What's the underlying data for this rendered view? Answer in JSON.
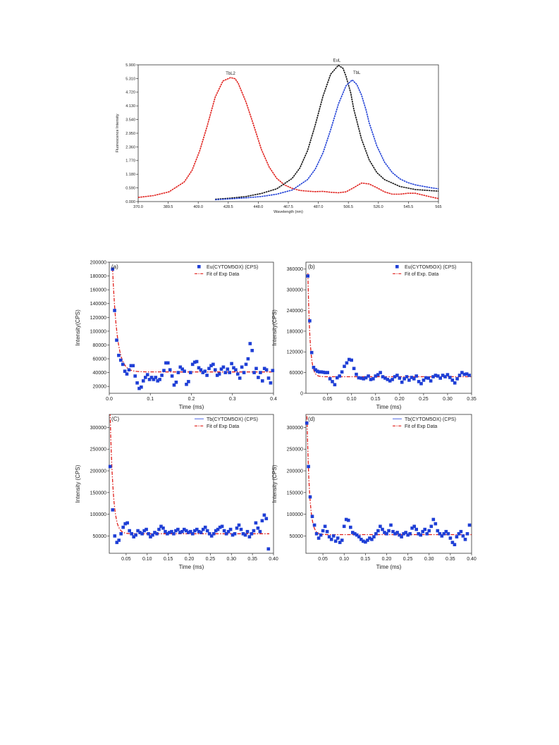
{
  "chart_data": [
    {
      "id": "top",
      "type": "line",
      "title": "",
      "xlabel": "Wavelength (nm)",
      "ylabel": "Fluorescence Intensity",
      "xlim": [
        370.0,
        565.0
      ],
      "ylim": [
        0.0,
        5.9
      ],
      "x_ticks": [
        "370.0",
        "389.5",
        "409.0",
        "428.5",
        "448.0",
        "467.5",
        "487.0",
        "506.5",
        "526.0",
        "545.5",
        "565"
      ],
      "x_tick_values": [
        370.0,
        389.5,
        409.0,
        428.5,
        448.0,
        467.5,
        487.0,
        506.5,
        526.0,
        545.5,
        565.0
      ],
      "y_ticks": [
        "0.000",
        "0.590",
        "1.180",
        "1.770",
        "2.360",
        "2.950",
        "3.540",
        "4.130",
        "4.720",
        "5.310",
        "5.900"
      ],
      "y_tick_values": [
        0.0,
        0.59,
        1.18,
        1.77,
        2.36,
        2.95,
        3.54,
        4.13,
        4.72,
        5.31,
        5.9
      ],
      "series": [
        {
          "name": "TbL2",
          "color": "#e0201c",
          "x": [
            370,
            380,
            390,
            400,
            405,
            410,
            415,
            420,
            425,
            430,
            433,
            435,
            440,
            445,
            450,
            455,
            460,
            465,
            470,
            475,
            480,
            485,
            490,
            495,
            500,
            505,
            510,
            515,
            520,
            525,
            530,
            535,
            540,
            545,
            550,
            555,
            560,
            565
          ],
          "y": [
            0.18,
            0.26,
            0.42,
            0.85,
            1.35,
            2.2,
            3.3,
            4.5,
            5.2,
            5.35,
            5.3,
            5.1,
            4.3,
            3.3,
            2.25,
            1.5,
            1.0,
            0.72,
            0.57,
            0.48,
            0.45,
            0.43,
            0.44,
            0.4,
            0.38,
            0.42,
            0.6,
            0.8,
            0.76,
            0.6,
            0.42,
            0.32,
            0.32,
            0.36,
            0.36,
            0.28,
            0.2,
            0.13
          ]
        },
        {
          "name": "EuL",
          "color": "#111111",
          "x": [
            420,
            430,
            440,
            450,
            460,
            470,
            475,
            480,
            485,
            490,
            495,
            500,
            503,
            505,
            508,
            510,
            515,
            520,
            525,
            530,
            540,
            550,
            560,
            565
          ],
          "y": [
            0.1,
            0.15,
            0.22,
            0.35,
            0.55,
            1.0,
            1.45,
            2.2,
            3.3,
            4.55,
            5.5,
            5.88,
            5.75,
            5.4,
            4.7,
            4.0,
            2.7,
            1.8,
            1.25,
            0.95,
            0.65,
            0.52,
            0.47,
            0.45
          ]
        },
        {
          "name": "TbL",
          "color": "#1f3fd6",
          "x": [
            420,
            430,
            440,
            450,
            460,
            470,
            480,
            485,
            490,
            495,
            500,
            505,
            509,
            512,
            515,
            518,
            520,
            525,
            530,
            535,
            540,
            545,
            550,
            560,
            565
          ],
          "y": [
            0.08,
            0.12,
            0.16,
            0.22,
            0.32,
            0.5,
            0.95,
            1.4,
            2.1,
            3.1,
            4.2,
            5.0,
            5.25,
            5.05,
            4.6,
            3.95,
            3.4,
            2.4,
            1.7,
            1.25,
            0.98,
            0.82,
            0.72,
            0.6,
            0.55
          ]
        }
      ],
      "annotations": [
        "TbL2",
        "EuL",
        "TbL"
      ]
    },
    {
      "id": "a",
      "type": "scatter",
      "panel_label": "(a)",
      "xlabel": "Time (ms)",
      "ylabel": "Intensity(CPS)",
      "xlim": [
        0.0,
        0.4
      ],
      "ylim": [
        10000,
        200000
      ],
      "x_ticks": [
        "0.0",
        "0.1",
        "0.2",
        "0.3",
        "0.4"
      ],
      "x_tick_values": [
        0.0,
        0.1,
        0.2,
        0.3,
        0.4
      ],
      "y_ticks": [
        "20000",
        "40000",
        "60000",
        "80000",
        "100000",
        "120000",
        "140000",
        "160000",
        "180000",
        "200000"
      ],
      "y_tick_values": [
        20000,
        40000,
        60000,
        80000,
        100000,
        120000,
        140000,
        160000,
        180000,
        200000
      ],
      "legend": [
        "Eu(CYTOM5OX) (CPS)",
        "Fit of Exp Data"
      ],
      "legend_placement": "top-right",
      "fit": {
        "y0": 41000,
        "A": 150000,
        "tau": 0.011,
        "x0": 0.008,
        "x1": 0.4
      },
      "points": {
        "x": [
          0.008,
          0.013,
          0.018,
          0.023,
          0.028,
          0.033,
          0.038,
          0.043,
          0.048,
          0.053,
          0.058,
          0.063,
          0.068,
          0.073,
          0.078,
          0.083,
          0.088,
          0.093,
          0.098,
          0.103,
          0.108,
          0.113,
          0.118,
          0.123,
          0.128,
          0.133,
          0.138,
          0.143,
          0.148,
          0.153,
          0.158,
          0.163,
          0.168,
          0.173,
          0.178,
          0.183,
          0.188,
          0.193,
          0.198,
          0.203,
          0.208,
          0.213,
          0.218,
          0.223,
          0.228,
          0.233,
          0.238,
          0.243,
          0.248,
          0.253,
          0.258,
          0.263,
          0.268,
          0.273,
          0.278,
          0.283,
          0.288,
          0.293,
          0.298,
          0.303,
          0.308,
          0.313,
          0.318,
          0.323,
          0.328,
          0.333,
          0.338,
          0.343,
          0.348,
          0.353,
          0.358,
          0.363,
          0.368,
          0.373,
          0.378,
          0.383,
          0.388,
          0.393,
          0.398
        ],
        "y": [
          190000,
          130000,
          87000,
          65000,
          58000,
          52000,
          42000,
          38000,
          44000,
          50000,
          50000,
          35000,
          25000,
          17000,
          19000,
          28000,
          33000,
          37000,
          30000,
          33000,
          30000,
          33000,
          28000,
          30000,
          36000,
          43000,
          54000,
          54000,
          44000,
          35000,
          22000,
          26000,
          40000,
          48000,
          45000,
          42000,
          23000,
          27000,
          40000,
          52000,
          55000,
          56000,
          47000,
          44000,
          40000,
          42000,
          36000,
          46000,
          50000,
          52000,
          44000,
          36000,
          38000,
          45000,
          48000,
          40000,
          45000,
          40000,
          53000,
          47000,
          44000,
          38000,
          32000,
          48000,
          40000,
          52000,
          60000,
          82000,
          72000,
          40000,
          46000,
          33000,
          40000,
          28000,
          46000,
          44000,
          32000,
          25000,
          43000
        ]
      }
    },
    {
      "id": "b",
      "type": "scatter",
      "panel_label": "(b)",
      "xlabel": "Time (ms)",
      "ylabel": "Intensity(CPS)",
      "xlim": [
        0.005,
        0.35
      ],
      "ylim": [
        0,
        380000
      ],
      "x_ticks": [
        "0.05",
        "0.10",
        "0.15",
        "0.20",
        "0.25",
        "0.30",
        "0.35"
      ],
      "x_tick_values": [
        0.05,
        0.1,
        0.15,
        0.2,
        0.25,
        0.3,
        0.35
      ],
      "y_ticks": [
        "0",
        "60000",
        "120000",
        "180000",
        "240000",
        "300000",
        "360000"
      ],
      "y_tick_values": [
        0,
        60000,
        120000,
        180000,
        240000,
        300000,
        360000
      ],
      "legend": [
        "Eu(CYTOM5OX) (CPS)",
        "Fit of Exp. Data"
      ],
      "legend_placement": "top-right",
      "fit": {
        "y0": 48000,
        "A": 300000,
        "tau": 0.0045,
        "x0": 0.009,
        "x1": 0.35
      },
      "points": {
        "x": [
          0.009,
          0.013,
          0.017,
          0.021,
          0.025,
          0.029,
          0.033,
          0.037,
          0.041,
          0.045,
          0.05,
          0.055,
          0.06,
          0.065,
          0.07,
          0.075,
          0.08,
          0.085,
          0.09,
          0.095,
          0.1,
          0.105,
          0.11,
          0.115,
          0.12,
          0.125,
          0.13,
          0.135,
          0.14,
          0.145,
          0.15,
          0.155,
          0.16,
          0.165,
          0.17,
          0.175,
          0.18,
          0.185,
          0.19,
          0.195,
          0.2,
          0.205,
          0.21,
          0.215,
          0.22,
          0.225,
          0.23,
          0.235,
          0.24,
          0.245,
          0.25,
          0.255,
          0.26,
          0.265,
          0.27,
          0.275,
          0.28,
          0.285,
          0.29,
          0.295,
          0.3,
          0.305,
          0.31,
          0.315,
          0.32,
          0.325,
          0.33,
          0.335,
          0.34,
          0.345
        ],
        "y": [
          340000,
          210000,
          118000,
          75000,
          68000,
          64000,
          62000,
          62000,
          61000,
          60000,
          60000,
          42000,
          34000,
          25000,
          45000,
          50000,
          62000,
          78000,
          88000,
          98000,
          96000,
          72000,
          55000,
          45000,
          44000,
          42000,
          45000,
          50000,
          40000,
          42000,
          50000,
          54000,
          60000,
          48000,
          44000,
          40000,
          36000,
          40000,
          48000,
          52000,
          44000,
          32000,
          42000,
          48000,
          38000,
          46000,
          42000,
          50000,
          34000,
          28000,
          38000,
          45000,
          44000,
          36000,
          48000,
          52000,
          50000,
          44000,
          52000,
          48000,
          54000,
          46000,
          38000,
          30000,
          42000,
          52000,
          60000,
          55000,
          56000,
          52000
        ]
      }
    },
    {
      "id": "c",
      "type": "scatter",
      "panel_label": "(C)",
      "xlabel": "Time (ms)",
      "ylabel": "Intensity (CPS)",
      "xlim": [
        0.01,
        0.4
      ],
      "ylim": [
        10000,
        330000
      ],
      "x_ticks": [
        "0.05",
        "0.10",
        "0.15",
        "0.20",
        "0.25",
        "0.30",
        "0.35",
        "0.40"
      ],
      "x_tick_values": [
        0.05,
        0.1,
        0.15,
        0.2,
        0.25,
        0.3,
        0.35,
        0.4
      ],
      "y_ticks": [
        "50000",
        "100000",
        "150000",
        "200000",
        "250000",
        "300000"
      ],
      "y_tick_values": [
        50000,
        100000,
        150000,
        200000,
        250000,
        300000
      ],
      "legend": [
        "Tb(CYTOM5OX) (CPS)",
        "Fit of Exp Data"
      ],
      "legend_placement": "top-right",
      "fit": {
        "y0": 55000,
        "A": 280000,
        "tau": 0.007,
        "x0": 0.012,
        "x1": 0.39
      },
      "points": {
        "x": [
          0.012,
          0.018,
          0.023,
          0.028,
          0.033,
          0.038,
          0.043,
          0.048,
          0.053,
          0.058,
          0.063,
          0.068,
          0.073,
          0.078,
          0.083,
          0.088,
          0.093,
          0.098,
          0.103,
          0.108,
          0.113,
          0.118,
          0.123,
          0.128,
          0.133,
          0.138,
          0.143,
          0.148,
          0.153,
          0.158,
          0.163,
          0.168,
          0.173,
          0.178,
          0.183,
          0.188,
          0.193,
          0.198,
          0.203,
          0.208,
          0.213,
          0.218,
          0.223,
          0.228,
          0.233,
          0.238,
          0.243,
          0.248,
          0.253,
          0.258,
          0.263,
          0.268,
          0.273,
          0.278,
          0.283,
          0.288,
          0.293,
          0.298,
          0.303,
          0.308,
          0.313,
          0.318,
          0.323,
          0.328,
          0.333,
          0.338,
          0.343,
          0.348,
          0.353,
          0.358,
          0.363,
          0.368,
          0.373,
          0.378,
          0.383,
          0.388
        ],
        "y": [
          210000,
          110000,
          50000,
          35000,
          40000,
          55000,
          70000,
          78000,
          80000,
          62000,
          55000,
          48000,
          52000,
          62000,
          58000,
          55000,
          62000,
          65000,
          55000,
          48000,
          52000,
          58000,
          55000,
          65000,
          72000,
          68000,
          60000,
          55000,
          58000,
          60000,
          55000,
          62000,
          65000,
          58000,
          60000,
          65000,
          62000,
          58000,
          60000,
          55000,
          62000,
          65000,
          60000,
          58000,
          65000,
          70000,
          62000,
          55000,
          50000,
          55000,
          62000,
          65000,
          70000,
          72000,
          62000,
          55000,
          60000,
          65000,
          52000,
          55000,
          68000,
          75000,
          65000,
          55000,
          52000,
          60000,
          48000,
          55000,
          62000,
          80000,
          68000,
          60000,
          85000,
          98000,
          90000,
          20000
        ]
      }
    },
    {
      "id": "d",
      "type": "scatter",
      "panel_label": "(d)",
      "xlabel": "Time (ms)",
      "ylabel": "Intensity (CPS)",
      "xlim": [
        0.01,
        0.4
      ],
      "ylim": [
        10000,
        330000
      ],
      "x_ticks": [
        "0.05",
        "0.10",
        "0.15",
        "0.20",
        "0.25",
        "0.30",
        "0.35",
        "0.40"
      ],
      "x_tick_values": [
        0.05,
        0.1,
        0.15,
        0.2,
        0.25,
        0.3,
        0.35,
        0.4
      ],
      "y_ticks": [
        "50000",
        "100000",
        "150000",
        "200000",
        "250000",
        "300000"
      ],
      "y_tick_values": [
        50000,
        100000,
        150000,
        200000,
        250000,
        300000
      ],
      "legend": [
        "Tb(CYTOM5OX) (CPS)",
        "Fit of Exp Data"
      ],
      "legend_placement": "top-right",
      "fit": {
        "y0": 53000,
        "A": 290000,
        "tau": 0.006,
        "x0": 0.012,
        "x1": 0.4
      },
      "points": {
        "x": [
          0.012,
          0.016,
          0.02,
          0.025,
          0.03,
          0.035,
          0.04,
          0.045,
          0.05,
          0.055,
          0.06,
          0.065,
          0.07,
          0.075,
          0.08,
          0.085,
          0.09,
          0.095,
          0.1,
          0.105,
          0.11,
          0.115,
          0.12,
          0.125,
          0.13,
          0.135,
          0.14,
          0.145,
          0.15,
          0.155,
          0.16,
          0.165,
          0.17,
          0.175,
          0.18,
          0.185,
          0.19,
          0.195,
          0.2,
          0.205,
          0.21,
          0.215,
          0.22,
          0.225,
          0.23,
          0.235,
          0.24,
          0.245,
          0.25,
          0.255,
          0.26,
          0.265,
          0.27,
          0.275,
          0.28,
          0.285,
          0.29,
          0.295,
          0.3,
          0.305,
          0.31,
          0.315,
          0.32,
          0.325,
          0.33,
          0.335,
          0.34,
          0.345,
          0.35,
          0.355,
          0.36,
          0.365,
          0.37,
          0.375,
          0.38,
          0.385,
          0.39,
          0.395
        ],
        "y": [
          310000,
          210000,
          140000,
          95000,
          75000,
          55000,
          45000,
          52000,
          62000,
          72000,
          60000,
          48000,
          42000,
          50000,
          38000,
          45000,
          35000,
          40000,
          72000,
          88000,
          86000,
          70000,
          58000,
          55000,
          52000,
          48000,
          42000,
          38000,
          36000,
          40000,
          45000,
          42000,
          48000,
          55000,
          62000,
          72000,
          65000,
          58000,
          55000,
          62000,
          75000,
          60000,
          55000,
          58000,
          52000,
          48000,
          55000,
          58000,
          52000,
          55000,
          68000,
          72000,
          65000,
          55000,
          52000,
          60000,
          65000,
          55000,
          62000,
          72000,
          88000,
          78000,
          62000,
          55000,
          50000,
          55000,
          60000,
          55000,
          45000,
          35000,
          30000,
          48000,
          55000,
          60000,
          50000,
          42000,
          55000,
          75000
        ]
      }
    }
  ]
}
